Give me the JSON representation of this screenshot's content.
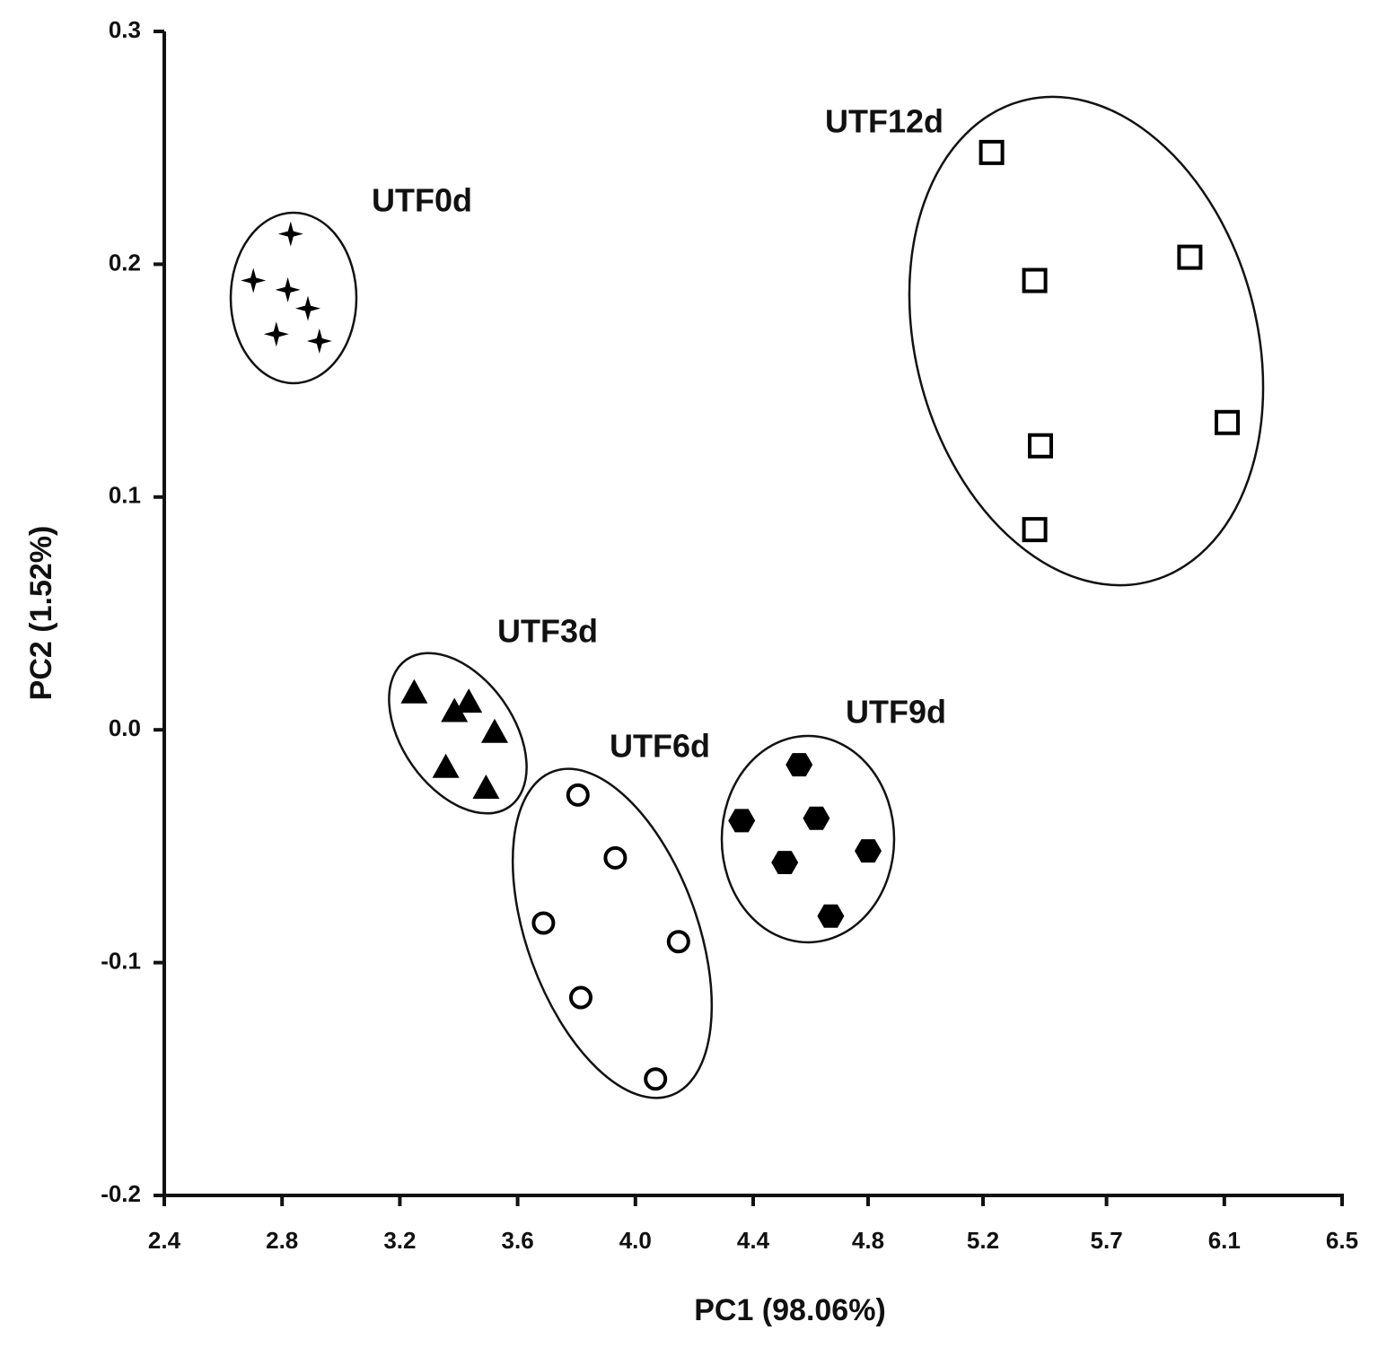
{
  "chart_data": {
    "type": "scatter",
    "x_label": "PC1 (98.06%)",
    "y_label": "PC2 (1.52%)",
    "xlim": [
      2.4,
      6.5
    ],
    "xticks": [
      2.4,
      {
        "value": 2.81,
        "label": "2.8"
      },
      {
        "value": 3.22,
        "label": "3.2"
      },
      {
        "value": 3.63,
        "label": "3.6"
      },
      {
        "value": 4.04,
        "label": "4.0"
      },
      {
        "value": 4.45,
        "label": "4.4"
      },
      {
        "value": 4.85,
        "label": "4.8"
      },
      {
        "value": 5.25,
        "label": "5.2"
      },
      {
        "value": 5.68,
        "label": "5.7"
      },
      {
        "value": 6.09,
        "label": "6.1"
      },
      6.5
    ],
    "ylim": [
      -0.2,
      0.3
    ],
    "yticks": [
      -0.2,
      -0.1,
      {
        "value": 0,
        "label": "0.0"
      },
      0.1,
      0.2,
      0.3
    ],
    "series": [
      {
        "name": "UTF0d",
        "marker": "star",
        "color": "#000000",
        "x": [
          2.84,
          2.71,
          2.83,
          2.9,
          2.79,
          2.94
        ],
        "values": [
          0.213,
          0.193,
          0.189,
          0.181,
          0.17,
          0.167
        ]
      },
      {
        "name": "UTF3d",
        "marker": "triangle",
        "color": "#000000",
        "x": [
          3.27,
          3.41,
          3.46,
          3.55,
          3.38,
          3.52
        ],
        "values": [
          0.016,
          0.008,
          0.012,
          -0.001,
          -0.016,
          -0.025
        ]
      },
      {
        "name": "UTF6d",
        "marker": "circle",
        "color": "#000000",
        "x": [
          3.84,
          3.97,
          3.72,
          4.19,
          3.85,
          4.11
        ],
        "values": [
          -0.028,
          -0.055,
          -0.083,
          -0.091,
          -0.115,
          -0.15
        ]
      },
      {
        "name": "UTF9d",
        "marker": "hexagon",
        "color": "#000000",
        "x": [
          4.61,
          4.41,
          4.67,
          4.85,
          4.56,
          4.72
        ],
        "values": [
          -0.015,
          -0.039,
          -0.038,
          -0.052,
          -0.057,
          -0.08
        ]
      },
      {
        "name": "UTF12d",
        "marker": "square",
        "color": "#000000",
        "x": [
          5.28,
          5.43,
          5.97,
          5.45,
          6.1,
          5.43
        ],
        "values": [
          0.248,
          0.193,
          0.203,
          0.122,
          0.132,
          0.086
        ]
      }
    ]
  }
}
